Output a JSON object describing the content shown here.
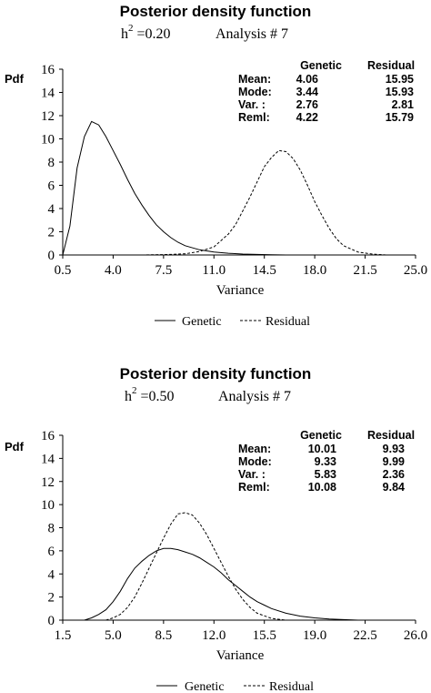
{
  "chart_data": [
    {
      "type": "line",
      "title": "Posterior density function",
      "subtitle": {
        "h_label": "h",
        "h_sup": "2",
        "h_value": " =0.20",
        "analysis": "Analysis # 7"
      },
      "xlabel": "Variance",
      "ylabel": "Pdf",
      "xlim": [
        0.5,
        25.0
      ],
      "ylim": [
        0,
        16
      ],
      "xticks": [
        0.5,
        4.0,
        7.5,
        11.0,
        14.5,
        18.0,
        21.5,
        25.0
      ],
      "xtick_labels": [
        "0.5",
        "4.0",
        "7.5",
        "11.0",
        "14.5",
        "18.0",
        "21.5",
        "25.0"
      ],
      "yticks": [
        0,
        2,
        4,
        6,
        8,
        10,
        12,
        14,
        16
      ],
      "ytick_labels": [
        "0",
        "2",
        "4",
        "6",
        "8",
        "10",
        "12",
        "14",
        "16"
      ],
      "stats": {
        "headers": [
          "Genetic",
          "Residual"
        ],
        "rows": [
          {
            "label": "Mean:",
            "genetic": "4.06",
            "residual": "15.95"
          },
          {
            "label": "Mode:",
            "genetic": "3.44",
            "residual": "15.93"
          },
          {
            "label": "Var. :",
            "genetic": "2.76",
            "residual": "2.81"
          },
          {
            "label": "Reml:",
            "genetic": "4.22",
            "residual": "15.79"
          }
        ]
      },
      "legend": {
        "position": "bottom",
        "entries": [
          "Genetic",
          "Residual"
        ]
      },
      "series": [
        {
          "name": "Genetic",
          "style": "solid",
          "x": [
            0.5,
            1.0,
            1.5,
            2.0,
            2.5,
            3.0,
            3.5,
            4.0,
            4.5,
            5.0,
            5.5,
            6.0,
            6.5,
            7.0,
            7.5,
            8.0,
            8.5,
            9.0,
            10.0,
            11.0,
            12.0,
            13.0,
            14.0,
            15.0,
            16.0
          ],
          "y": [
            0.0,
            2.5,
            7.5,
            10.2,
            11.5,
            11.2,
            10.2,
            9.0,
            7.8,
            6.5,
            5.3,
            4.3,
            3.4,
            2.6,
            2.0,
            1.5,
            1.1,
            0.8,
            0.45,
            0.25,
            0.15,
            0.08,
            0.05,
            0.02,
            0.0
          ]
        },
        {
          "name": "Residual",
          "style": "dashed",
          "x": [
            6.0,
            8.0,
            9.0,
            10.0,
            11.0,
            12.0,
            12.5,
            13.0,
            13.5,
            14.0,
            14.5,
            15.0,
            15.5,
            16.0,
            16.5,
            17.0,
            17.5,
            18.0,
            18.5,
            19.0,
            19.5,
            20.0,
            21.0,
            22.0,
            23.0
          ],
          "y": [
            0.0,
            0.05,
            0.1,
            0.3,
            0.7,
            1.8,
            2.6,
            3.8,
            5.0,
            6.3,
            7.6,
            8.4,
            9.0,
            8.9,
            8.3,
            7.3,
            6.0,
            4.6,
            3.4,
            2.3,
            1.4,
            0.8,
            0.25,
            0.08,
            0.0
          ]
        }
      ]
    },
    {
      "type": "line",
      "title": "Posterior density function",
      "subtitle": {
        "h_label": "h",
        "h_sup": "2",
        "h_value": " =0.50",
        "analysis": "Analysis # 7"
      },
      "xlabel": "Variance",
      "ylabel": "Pdf",
      "xlim": [
        1.5,
        26.0
      ],
      "ylim": [
        0,
        16
      ],
      "xticks": [
        1.5,
        5.0,
        8.5,
        12.0,
        15.5,
        19.0,
        22.5,
        26.0
      ],
      "xtick_labels": [
        "1.5",
        "5.0",
        "8.5",
        "12.0",
        "15.5",
        "19.0",
        "22.5",
        "26.0"
      ],
      "yticks": [
        0,
        2,
        4,
        6,
        8,
        10,
        12,
        14,
        16
      ],
      "ytick_labels": [
        "0",
        "2",
        "4",
        "6",
        "8",
        "10",
        "12",
        "14",
        "16"
      ],
      "stats": {
        "headers": [
          "Genetic",
          "Residual"
        ],
        "rows": [
          {
            "label": "Mean:",
            "genetic": "10.01",
            "residual": "9.93"
          },
          {
            "label": "Mode:",
            "genetic": "9.33",
            "residual": "9.99"
          },
          {
            "label": "Var. :",
            "genetic": "5.83",
            "residual": "2.36"
          },
          {
            "label": "Reml:",
            "genetic": "10.08",
            "residual": "9.84"
          }
        ]
      },
      "legend": {
        "position": "bottom",
        "entries": [
          "Genetic",
          "Residual"
        ]
      },
      "series": [
        {
          "name": "Genetic",
          "style": "solid",
          "x": [
            3.0,
            3.5,
            4.0,
            4.5,
            5.0,
            5.5,
            6.0,
            6.5,
            7.0,
            7.5,
            8.0,
            8.5,
            9.0,
            9.5,
            10.0,
            10.5,
            11.0,
            11.5,
            12.0,
            12.5,
            13.0,
            13.5,
            14.0,
            14.5,
            15.0,
            15.5,
            16.0,
            17.0,
            18.0,
            19.0,
            20.0,
            21.0,
            22.0
          ],
          "y": [
            0.0,
            0.2,
            0.5,
            0.9,
            1.6,
            2.5,
            3.6,
            4.5,
            5.1,
            5.6,
            6.0,
            6.2,
            6.2,
            6.1,
            5.9,
            5.7,
            5.4,
            5.0,
            4.6,
            4.1,
            3.5,
            3.0,
            2.5,
            2.0,
            1.6,
            1.3,
            1.0,
            0.6,
            0.35,
            0.2,
            0.1,
            0.05,
            0.0
          ]
        },
        {
          "name": "Residual",
          "style": "dashed",
          "x": [
            4.5,
            5.0,
            5.5,
            6.0,
            6.5,
            7.0,
            7.5,
            8.0,
            8.5,
            9.0,
            9.5,
            10.0,
            10.5,
            11.0,
            11.5,
            12.0,
            12.5,
            13.0,
            13.5,
            14.0,
            14.5,
            15.0,
            16.0,
            17.0
          ],
          "y": [
            0.0,
            0.2,
            0.5,
            1.1,
            2.0,
            3.2,
            4.5,
            5.8,
            7.1,
            8.3,
            9.2,
            9.3,
            9.1,
            8.4,
            7.4,
            6.2,
            5.0,
            3.8,
            2.7,
            1.8,
            1.1,
            0.6,
            0.15,
            0.0
          ]
        }
      ]
    }
  ]
}
